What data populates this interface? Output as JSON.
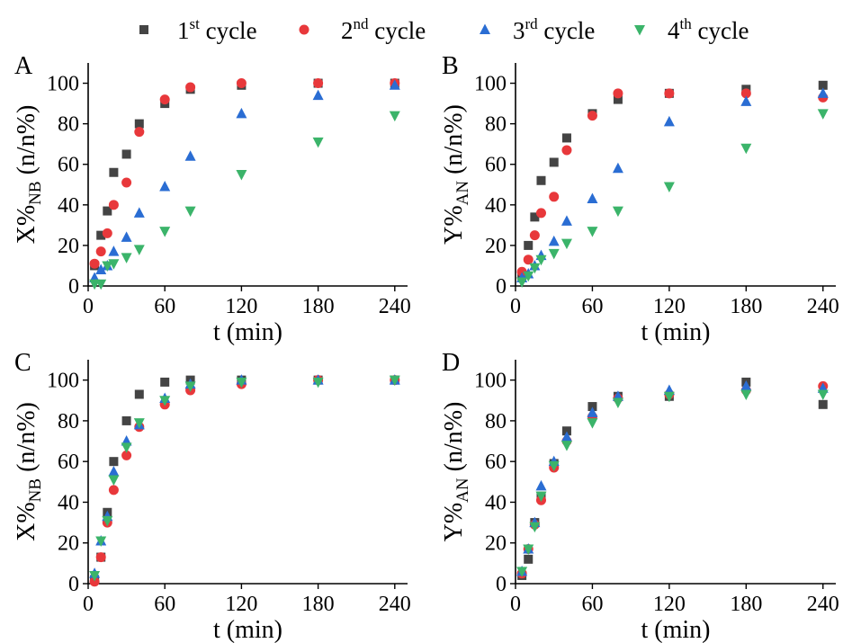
{
  "colors": {
    "series1": "#444444",
    "series2": "#e8383b",
    "series3": "#2a6dd3",
    "series4": "#3bb46a",
    "axis": "#000000"
  },
  "legend": {
    "items": [
      {
        "marker": "square",
        "base": "1",
        "sup": "st",
        "rest": " cycle"
      },
      {
        "marker": "circle",
        "base": "2",
        "sup": "nd",
        "rest": " cycle"
      },
      {
        "marker": "triangle-up",
        "base": "3",
        "sup": "rd",
        "rest": " cycle"
      },
      {
        "marker": "triangle-down",
        "base": "4",
        "sup": "th",
        "rest": " cycle"
      }
    ]
  },
  "chart_data": [
    {
      "type": "scatter",
      "panel_label": "A",
      "xlabel": "t (min)",
      "ylabel": {
        "main": "X%",
        "sub": "NB",
        "unit": " (n/n%)"
      },
      "xlim": [
        0,
        250
      ],
      "ylim": [
        0,
        110
      ],
      "xticks": [
        0,
        60,
        120,
        180,
        240
      ],
      "yticks": [
        0,
        20,
        40,
        60,
        80,
        100
      ],
      "series": [
        {
          "name": "1st cycle",
          "x": [
            5,
            10,
            15,
            20,
            30,
            40,
            60,
            80,
            120,
            180,
            240
          ],
          "y": [
            10,
            25,
            37,
            56,
            65,
            80,
            90,
            97,
            99,
            100,
            100
          ]
        },
        {
          "name": "2nd cycle",
          "x": [
            5,
            10,
            15,
            20,
            30,
            40,
            60,
            80,
            120,
            180,
            240
          ],
          "y": [
            11,
            17,
            26,
            40,
            51,
            76,
            92,
            98,
            100,
            100,
            100
          ]
        },
        {
          "name": "3rd cycle",
          "x": [
            5,
            10,
            15,
            20,
            30,
            40,
            60,
            80,
            120,
            180,
            240
          ],
          "y": [
            4,
            8,
            10,
            17,
            24,
            36,
            49,
            64,
            85,
            94,
            99
          ]
        },
        {
          "name": "4th cycle",
          "x": [
            5,
            10,
            15,
            20,
            30,
            40,
            60,
            80,
            120,
            180,
            240
          ],
          "y": [
            1,
            1,
            10,
            11,
            14,
            18,
            27,
            37,
            55,
            71,
            84
          ]
        }
      ]
    },
    {
      "type": "scatter",
      "panel_label": "B",
      "xlabel": "t (min)",
      "ylabel": {
        "main": "Y%",
        "sub": "AN",
        "unit": " (n/n%)"
      },
      "xlim": [
        0,
        250
      ],
      "ylim": [
        0,
        110
      ],
      "xticks": [
        0,
        60,
        120,
        180,
        240
      ],
      "yticks": [
        0,
        20,
        40,
        60,
        80,
        100
      ],
      "series": [
        {
          "name": "1st cycle",
          "x": [
            5,
            10,
            15,
            20,
            30,
            40,
            60,
            80,
            120,
            180,
            240
          ],
          "y": [
            5,
            20,
            34,
            52,
            61,
            73,
            85,
            92,
            95,
            97,
            99
          ]
        },
        {
          "name": "2nd cycle",
          "x": [
            5,
            10,
            15,
            20,
            30,
            40,
            60,
            80,
            120,
            180,
            240
          ],
          "y": [
            7,
            13,
            25,
            36,
            44,
            67,
            84,
            95,
            95,
            95,
            93
          ]
        },
        {
          "name": "3rd cycle",
          "x": [
            5,
            10,
            15,
            20,
            30,
            40,
            60,
            80,
            120,
            180,
            240
          ],
          "y": [
            4,
            6,
            10,
            15,
            22,
            32,
            43,
            58,
            81,
            91,
            95
          ]
        },
        {
          "name": "4th cycle",
          "x": [
            5,
            10,
            15,
            20,
            30,
            40,
            60,
            80,
            120,
            180,
            240
          ],
          "y": [
            2,
            5,
            9,
            13,
            16,
            21,
            27,
            37,
            49,
            68,
            85
          ]
        }
      ]
    },
    {
      "type": "scatter",
      "panel_label": "C",
      "xlabel": "t (min)",
      "ylabel": {
        "main": "X%",
        "sub": "NB",
        "unit": " (n/n%)"
      },
      "xlim": [
        0,
        250
      ],
      "ylim": [
        0,
        110
      ],
      "xticks": [
        0,
        60,
        120,
        180,
        240
      ],
      "yticks": [
        0,
        20,
        40,
        60,
        80,
        100
      ],
      "series": [
        {
          "name": "1st cycle",
          "x": [
            5,
            10,
            15,
            20,
            30,
            40,
            60,
            80,
            120,
            180,
            240
          ],
          "y": [
            2,
            13,
            35,
            60,
            80,
            93,
            99,
            100,
            100,
            100,
            100
          ]
        },
        {
          "name": "2nd cycle",
          "x": [
            5,
            10,
            15,
            20,
            30,
            40,
            60,
            80,
            120,
            180,
            240
          ],
          "y": [
            1,
            13,
            30,
            46,
            63,
            77,
            88,
            95,
            98,
            100,
            100
          ]
        },
        {
          "name": "3rd cycle",
          "x": [
            5,
            10,
            15,
            20,
            30,
            40,
            60,
            80,
            120,
            180,
            240
          ],
          "y": [
            5,
            21,
            33,
            55,
            70,
            78,
            91,
            98,
            100,
            100,
            100
          ]
        },
        {
          "name": "4th cycle",
          "x": [
            5,
            10,
            15,
            20,
            30,
            40,
            60,
            80,
            120,
            180,
            240
          ],
          "y": [
            4,
            21,
            31,
            51,
            67,
            79,
            90,
            97,
            99,
            99,
            100
          ]
        }
      ]
    },
    {
      "type": "scatter",
      "panel_label": "D",
      "xlabel": "t (min)",
      "ylabel": {
        "main": "Y%",
        "sub": "AN",
        "unit": " (n/n%)"
      },
      "xlim": [
        0,
        250
      ],
      "ylim": [
        0,
        110
      ],
      "xticks": [
        0,
        60,
        120,
        180,
        240
      ],
      "yticks": [
        0,
        20,
        40,
        60,
        80,
        100
      ],
      "series": [
        {
          "name": "1st cycle",
          "x": [
            5,
            10,
            15,
            20,
            30,
            40,
            60,
            80,
            120,
            180,
            240
          ],
          "y": [
            4,
            12,
            30,
            43,
            59,
            75,
            87,
            92,
            92,
            99,
            88
          ]
        },
        {
          "name": "2nd cycle",
          "x": [
            5,
            10,
            15,
            20,
            30,
            40,
            60,
            80,
            120,
            180,
            240
          ],
          "y": [
            5,
            17,
            29,
            41,
            57,
            70,
            82,
            91,
            93,
            95,
            97
          ]
        },
        {
          "name": "3rd cycle",
          "x": [
            5,
            10,
            15,
            20,
            30,
            40,
            60,
            80,
            120,
            180,
            240
          ],
          "y": [
            6,
            17,
            30,
            48,
            60,
            72,
            84,
            92,
            95,
            97,
            96
          ]
        },
        {
          "name": "4th cycle",
          "x": [
            5,
            10,
            15,
            20,
            30,
            40,
            60,
            80,
            120,
            180,
            240
          ],
          "y": [
            6,
            17,
            28,
            43,
            58,
            68,
            79,
            89,
            92,
            93,
            93
          ]
        }
      ]
    }
  ]
}
